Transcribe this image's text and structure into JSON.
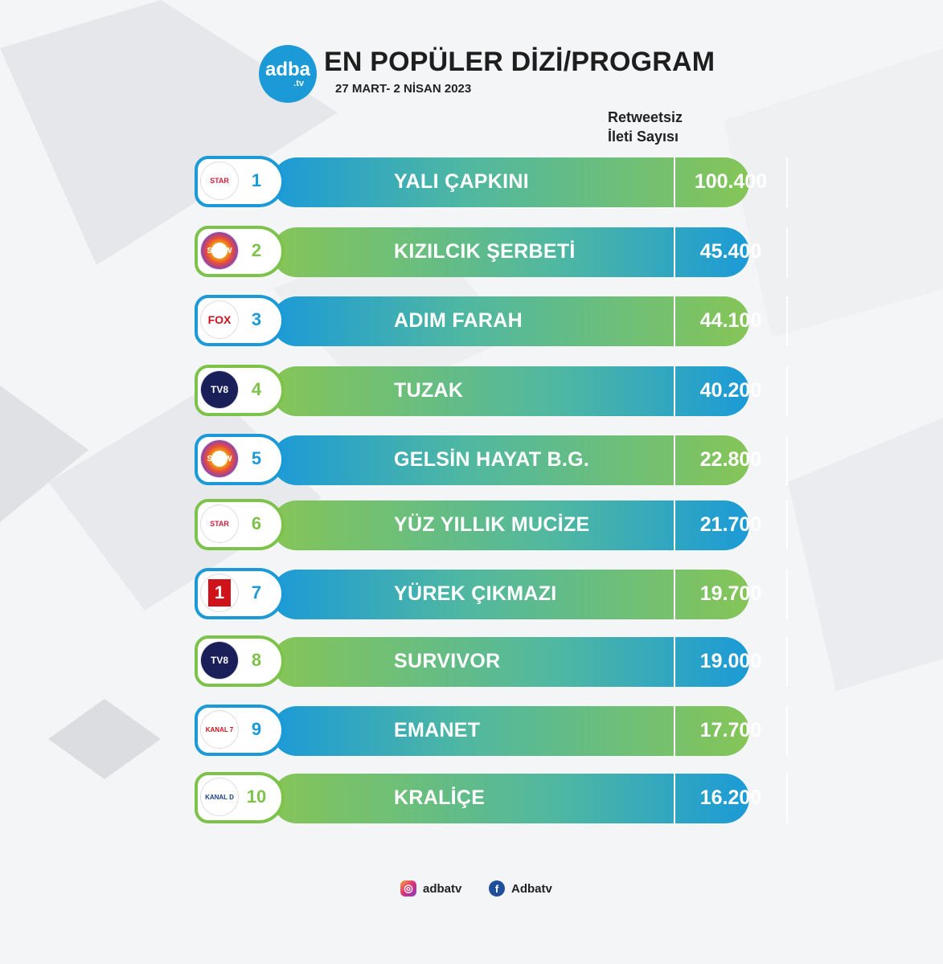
{
  "header": {
    "logo_main": "adba",
    "logo_sub": ".tv",
    "title": "EN POPÜLER DİZİ/PROGRAM",
    "date_range": "27 MART- 2 NİSAN 2023"
  },
  "column_header": {
    "line1": "Retweetsiz",
    "line2": "İleti Sayısı"
  },
  "rows": [
    {
      "rank": "1",
      "channel": "STAR",
      "name": "YALI ÇAPKINI",
      "value": "100.400"
    },
    {
      "rank": "2",
      "channel": "SHOW",
      "name": "KIZILCIK ŞERBETİ",
      "value": "45.400"
    },
    {
      "rank": "3",
      "channel": "FOX",
      "name": "ADIM FARAH",
      "value": "44.100"
    },
    {
      "rank": "4",
      "channel": "TV8",
      "name": "TUZAK",
      "value": "40.200"
    },
    {
      "rank": "5",
      "channel": "SHOW",
      "name": "GELSİN HAYAT B.G.",
      "value": "22.800"
    },
    {
      "rank": "6",
      "channel": "STAR",
      "name": "YÜZ YILLIK MUCİZE",
      "value": "21.700"
    },
    {
      "rank": "7",
      "channel": "1",
      "name": "YÜREK ÇIKMAZI",
      "value": "19.700"
    },
    {
      "rank": "8",
      "channel": "TV8",
      "name": "SURVIVOR",
      "value": "19.000"
    },
    {
      "rank": "9",
      "channel": "KANAL 7",
      "name": "EMANET",
      "value": "17.700"
    },
    {
      "rank": "10",
      "channel": "KANAL D",
      "name": "KRALİÇE",
      "value": "16.200"
    }
  ],
  "footer": {
    "instagram": "adbatv",
    "facebook": "Adbatv"
  },
  "colors": {
    "blue": "#1b9ad7",
    "green": "#86c557"
  }
}
